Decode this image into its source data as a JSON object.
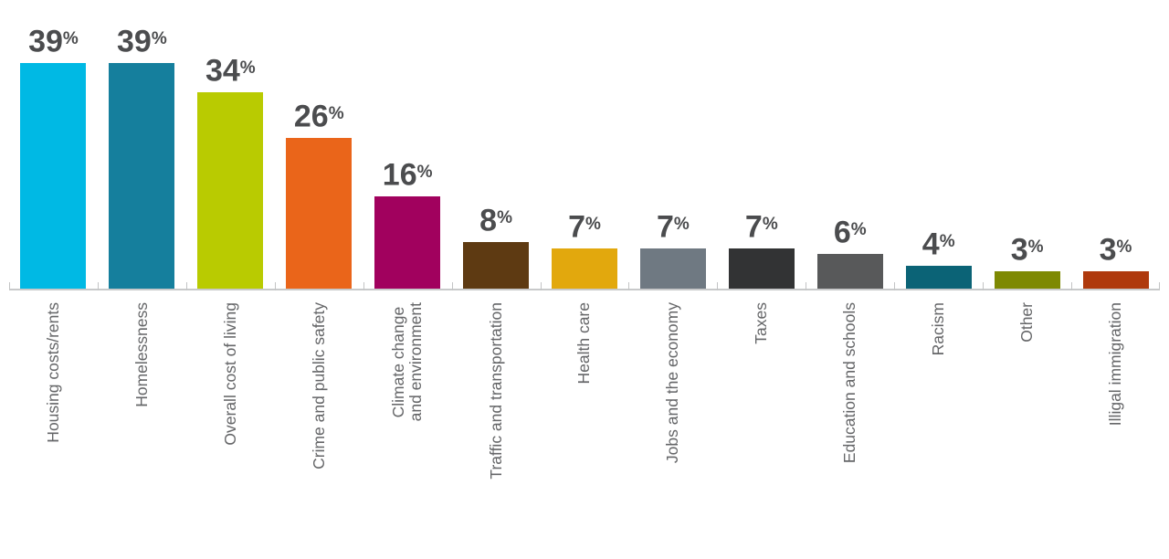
{
  "chart_data": {
    "type": "bar",
    "title": "",
    "unit": "%",
    "categories": [
      "Housing costs/rents",
      "Homelessness",
      "Overall cost of living",
      "Crime and public safety",
      "Climate change\nand environment",
      "Traffic and transportation",
      "Health care",
      "Jobs and the economy",
      "Taxes",
      "Education and schools",
      "Racism",
      "Other",
      "Illigal immigration"
    ],
    "values": [
      39,
      39,
      34,
      26,
      16,
      8,
      7,
      7,
      7,
      6,
      4,
      3,
      3
    ],
    "bar_colors": [
      "#00b9e4",
      "#157f9d",
      "#b9cb01",
      "#ea651a",
      "#a1015e",
      "#5e3a12",
      "#e2a80d",
      "#6f7982",
      "#323334",
      "#58595a",
      "#0b6376",
      "#7e8903",
      "#af390d"
    ],
    "ylim": [
      0,
      42
    ],
    "grid": false,
    "legend": "none",
    "xlabel": "",
    "ylabel": "",
    "value_label_color": "#4b4c4e",
    "category_label_color": "#656668",
    "axis_color": "#c8c9ca"
  }
}
